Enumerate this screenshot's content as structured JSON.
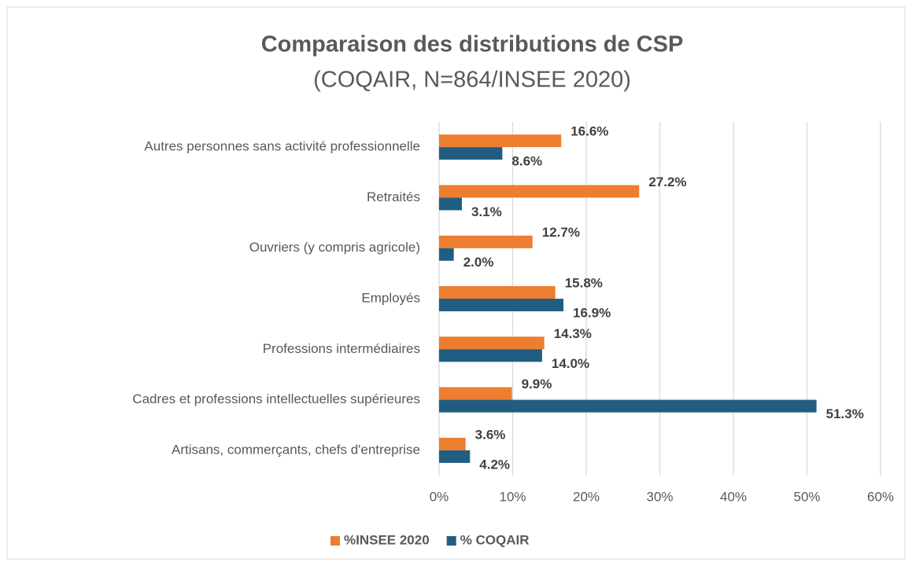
{
  "chart_data": {
    "type": "hbar",
    "title": "Comparaison des distributions de CSP",
    "subtitle": "(COQAIR, N=864/INSEE 2020)",
    "categories": [
      "Autres personnes sans activité professionnelle",
      "Retraités",
      "Ouvriers (y compris agricole)",
      "Employés",
      "Professions intermédiaires",
      "Cadres et professions intellectuelles supérieures",
      "Artisans, commerçants, chefs d'entreprise"
    ],
    "series": [
      {
        "name": "%INSEE 2020",
        "color": "#ed7d31",
        "values": [
          16.6,
          27.2,
          12.7,
          15.8,
          14.3,
          9.9,
          3.6
        ],
        "value_labels": [
          "16.6%",
          "27.2%",
          "12.7%",
          "15.8%",
          "14.3%",
          "9.9%",
          "3.6%"
        ]
      },
      {
        "name": "% COQAIR",
        "color": "#1f5e80",
        "values": [
          8.6,
          3.1,
          2.0,
          16.9,
          14.0,
          51.3,
          4.2
        ],
        "value_labels": [
          "8.6%",
          "3.1%",
          "2.0%",
          "16.9%",
          "14.0%",
          "51.3%",
          "4.2%"
        ]
      }
    ],
    "xlim": [
      0,
      60
    ],
    "xticks": [
      {
        "value": 0,
        "label": "0%"
      },
      {
        "value": 10,
        "label": "10%"
      },
      {
        "value": 20,
        "label": "20%"
      },
      {
        "value": 30,
        "label": "30%"
      },
      {
        "value": 40,
        "label": "40%"
      },
      {
        "value": 50,
        "label": "50%"
      },
      {
        "value": 60,
        "label": "60%"
      }
    ],
    "grid": true,
    "legend": "bottom"
  }
}
